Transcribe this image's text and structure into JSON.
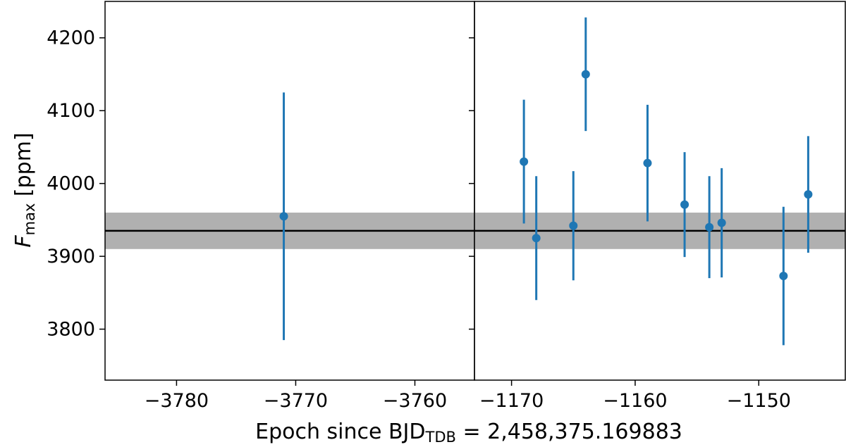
{
  "chart_data": {
    "type": "scatter",
    "subtype": "broken-x-axis errorbar",
    "xlabel_prefix": "Epoch since BJD",
    "xlabel_subscript": "TDB",
    "xlabel_suffix": " = 2,458,375.169883",
    "ylabel_main": "F",
    "ylabel_subscript": "max",
    "ylabel_unit": " [ppm]",
    "ylim": [
      3730,
      4250
    ],
    "yticks": [
      3800,
      3900,
      4000,
      4100,
      4200
    ],
    "yticklabels": [
      "3800",
      "3900",
      "4000",
      "4100",
      "4200"
    ],
    "reference": {
      "value": 3935,
      "band": [
        3910,
        3960
      ]
    },
    "colors": {
      "points": "#1f77b4",
      "band": "#b0b0b0",
      "line": "#000000"
    },
    "grid": false,
    "panels": [
      {
        "xlim": [
          -3786,
          -3755
        ],
        "xticks": [
          -3780,
          -3770,
          -3760
        ],
        "xticklabels": [
          "−3780",
          "−3770",
          "−3760"
        ],
        "points": [
          {
            "x": -3771,
            "y": 3955,
            "yerr": 170
          }
        ]
      },
      {
        "xlim": [
          -1173,
          -1143
        ],
        "xticks": [
          -1170,
          -1160,
          -1150
        ],
        "xticklabels": [
          "−1170",
          "−1160",
          "−1150"
        ],
        "points": [
          {
            "x": -1169,
            "y": 4030,
            "yerr": 85
          },
          {
            "x": -1168,
            "y": 3925,
            "yerr": 85
          },
          {
            "x": -1165,
            "y": 3942,
            "yerr": 75
          },
          {
            "x": -1164,
            "y": 4150,
            "yerr": 78
          },
          {
            "x": -1159,
            "y": 4028,
            "yerr": 80
          },
          {
            "x": -1156,
            "y": 3971,
            "yerr": 72
          },
          {
            "x": -1154,
            "y": 3940,
            "yerr": 70
          },
          {
            "x": -1153,
            "y": 3946,
            "yerr": 75
          },
          {
            "x": -1148,
            "y": 3873,
            "yerr": 95
          },
          {
            "x": -1146,
            "y": 3985,
            "yerr": 80
          }
        ]
      }
    ]
  }
}
